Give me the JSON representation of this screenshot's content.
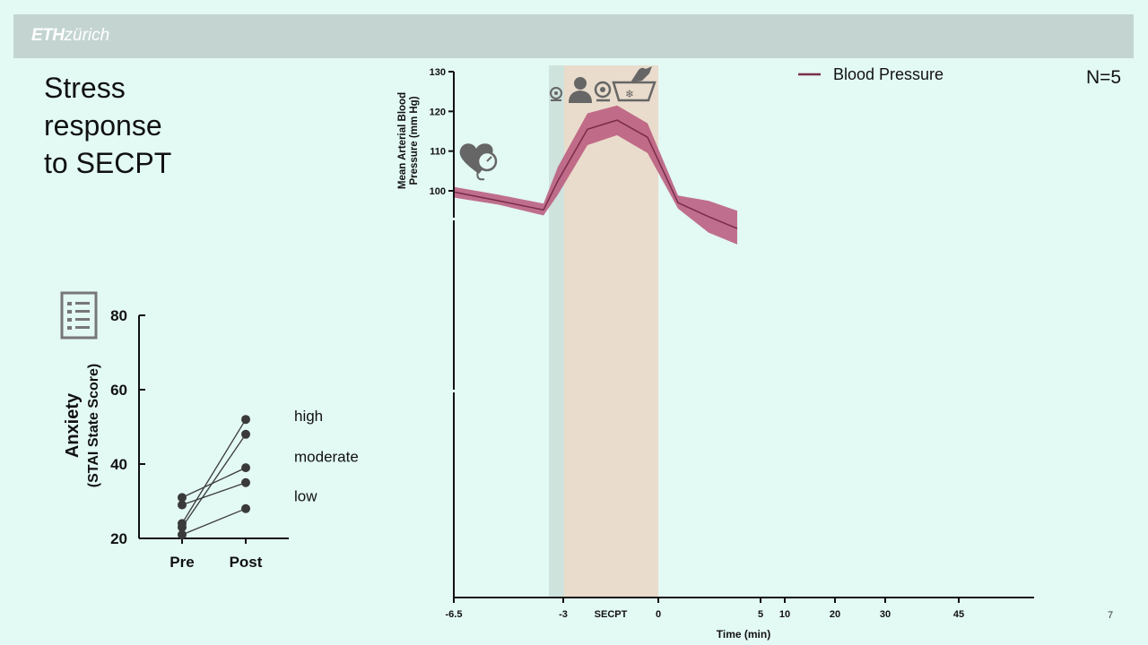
{
  "header": {
    "logo_bold": "ETH",
    "logo_rest": "zürich"
  },
  "slide": {
    "title_lines": [
      "Stress",
      "response",
      "to SECPT"
    ],
    "n_label": "N=5",
    "page_number": "7"
  },
  "icons": {
    "anxiety_icon": "questionnaire-icon",
    "bp_icon": "heart-blood-pressure-icon",
    "protocol_icons": [
      "camera-icon",
      "person-icon",
      "camera-icon",
      "cold-water-hand-icon"
    ]
  },
  "colors": {
    "bp_line": "#7a2c4a",
    "bp_band": "#b9577a",
    "baseline_region": "#cfe3dd",
    "secpt_region": "#e9dccc",
    "anxiety_points": "#3a3a3a"
  },
  "chart_data": [
    {
      "type": "line",
      "title": "",
      "xlabel": "Time (min)",
      "ylabel": "Mean Arterial Blood Pressure (mm Hg)",
      "x_tick_labels": [
        "-6.5",
        "-3",
        "SECPT",
        "0",
        "5",
        "10",
        "20",
        "30",
        "45"
      ],
      "y_ticks": [
        100,
        110,
        120,
        130
      ],
      "ylim": [
        95,
        130
      ],
      "legend": {
        "position": "top-right",
        "entries": [
          "Blood Pressure"
        ]
      },
      "shaded_regions": [
        {
          "name": "baseline",
          "x": [
            -3.5,
            -3.0
          ]
        },
        {
          "name": "SECPT",
          "x": [
            -3.0,
            0
          ]
        }
      ],
      "series": [
        {
          "name": "Blood Pressure",
          "x": [
            -6.5,
            -5,
            -3.5,
            -3,
            -2,
            -1,
            0,
            1,
            2.5,
            3.5
          ],
          "mean": [
            99.7,
            97.5,
            95.2,
            102.5,
            115.5,
            117.8,
            113.5,
            97.0,
            93.5,
            90.5
          ],
          "upper": [
            101.0,
            99.0,
            96.8,
            106.0,
            119.5,
            121.5,
            117.0,
            98.8,
            97.5,
            95.0
          ],
          "lower": [
            98.3,
            96.5,
            93.8,
            99.0,
            111.5,
            114.0,
            109.5,
            95.5,
            89.5,
            86.5
          ]
        }
      ]
    },
    {
      "type": "line",
      "title": "",
      "xlabel": "",
      "ylabel": "Anxiety",
      "ylabel_sub": "(STAI State Score)",
      "categories": [
        "Pre",
        "Post"
      ],
      "y_ticks": [
        20,
        40,
        60,
        80
      ],
      "ylim": [
        20,
        80
      ],
      "level_labels": [
        {
          "text": "high",
          "value": 53
        },
        {
          "text": "moderate",
          "value": 42
        },
        {
          "text": "low",
          "value": 31.5
        }
      ],
      "series": [
        {
          "values": [
            24,
            52
          ]
        },
        {
          "values": [
            31,
            39
          ]
        },
        {
          "values": [
            23,
            48
          ]
        },
        {
          "values": [
            29,
            35
          ]
        },
        {
          "values": [
            21,
            28
          ]
        }
      ]
    }
  ]
}
